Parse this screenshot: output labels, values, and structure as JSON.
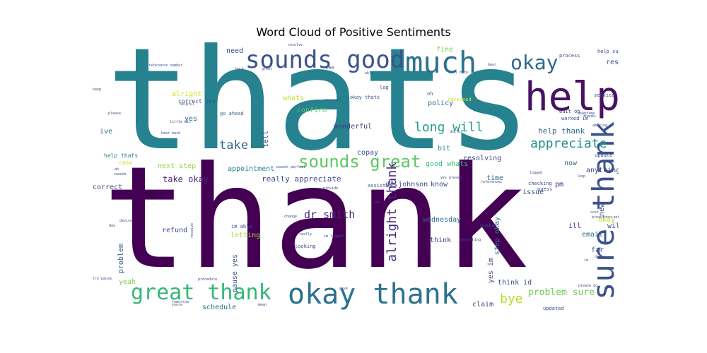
{
  "chart_data": {
    "type": "wordcloud",
    "title": "Word Cloud of Positive Sentiments",
    "palette": "viridis",
    "background": "#ffffff",
    "words": [
      {
        "text": "thats",
        "color": "#26828e"
      },
      {
        "text": "thank",
        "color": "#440154"
      },
      {
        "text": "help",
        "color": "#471164"
      },
      {
        "text": "much",
        "color": "#2c728e"
      },
      {
        "text": "sounds good",
        "color": "#3b528b"
      },
      {
        "text": "okay thank",
        "color": "#2c728e"
      },
      {
        "text": "great thank",
        "color": "#35b779"
      },
      {
        "text": "sure thank",
        "color": "#3b528b"
      },
      {
        "text": "okay",
        "color": "#31688e"
      },
      {
        "text": "sounds great",
        "color": "#5ec962"
      },
      {
        "text": "long will",
        "color": "#1f9e89"
      },
      {
        "text": "alright thank",
        "color": "#482878"
      },
      {
        "text": "appreciate",
        "color": "#21918c"
      },
      {
        "text": "bye",
        "color": "#b5de2b"
      },
      {
        "text": "take",
        "color": "#31688e"
      },
      {
        "text": "dr smith",
        "color": "#482878"
      },
      {
        "text": "problem sure",
        "color": "#6ece58"
      },
      {
        "text": "help thank",
        "color": "#31688e"
      },
      {
        "text": "really appreciate",
        "color": "#3e4a89"
      },
      {
        "text": "take okay",
        "color": "#482878"
      },
      {
        "text": "next step",
        "color": "#90d743"
      },
      {
        "text": "good whats",
        "color": "#35b779"
      },
      {
        "text": "resolving",
        "color": "#3e4a89"
      },
      {
        "text": "appointment",
        "color": "#26828e"
      },
      {
        "text": "wednesday",
        "color": "#31688e"
      },
      {
        "text": "resolved",
        "color": "#3b528b"
      },
      {
        "text": "fine",
        "color": "#7ad151"
      },
      {
        "text": "need",
        "color": "#3e4a89"
      },
      {
        "text": "whats",
        "color": "#bddf26"
      },
      {
        "text": "policy",
        "color": "#31688e"
      },
      {
        "text": "alright",
        "color": "#d2e21b"
      },
      {
        "text": "yes",
        "color": "#31688e"
      },
      {
        "text": "ive",
        "color": "#2c728e"
      },
      {
        "text": "tell",
        "color": "#3e4a89"
      },
      {
        "text": "confirm",
        "color": "#5ec962"
      },
      {
        "text": "wonderful",
        "color": "#443983"
      },
      {
        "text": "copay",
        "color": "#3b528b"
      },
      {
        "text": "bit",
        "color": "#21918c"
      },
      {
        "text": "time",
        "color": "#31688e"
      },
      {
        "text": "pm",
        "color": "#482878"
      },
      {
        "text": "dr johnson",
        "color": "#3b528b"
      },
      {
        "text": "know",
        "color": "#3e4a89"
      },
      {
        "text": "issue",
        "color": "#3b528b"
      },
      {
        "text": "now",
        "color": "#31688e"
      },
      {
        "text": "anything",
        "color": "#3e4a89"
      },
      {
        "text": "new",
        "color": "#3e4a89"
      },
      {
        "text": "okay got",
        "color": "#bddf26"
      },
      {
        "text": "will",
        "color": "#3b528b"
      },
      {
        "text": "ill",
        "color": "#482878"
      },
      {
        "text": "email",
        "color": "#31688e"
      },
      {
        "text": "far",
        "color": "#3e4a89"
      },
      {
        "text": "think",
        "color": "#3e4a89"
      },
      {
        "text": "yes im",
        "color": "#3e4a89"
      },
      {
        "text": "think id",
        "color": "#3b528b"
      },
      {
        "text": "claim",
        "color": "#3e4a89"
      },
      {
        "text": "refund",
        "color": "#3e4a89"
      },
      {
        "text": "correct",
        "color": "#3e4a89"
      },
      {
        "text": "problem",
        "color": "#3b528b"
      },
      {
        "text": "yeah",
        "color": "#7ad151"
      },
      {
        "text": "schedule",
        "color": "#2c728e"
      },
      {
        "text": "pause yes",
        "color": "#3b528b"
      },
      {
        "text": "step okay",
        "color": "#2c728e"
      },
      {
        "text": "letting",
        "color": "#a0da39"
      },
      {
        "text": "case",
        "color": "#d2e21b"
      },
      {
        "text": "help thats",
        "color": "#26828e"
      },
      {
        "text": "correct yes",
        "color": "#3b528b"
      },
      {
        "text": "go ahead",
        "color": "#31688e"
      },
      {
        "text": "okay thats",
        "color": "#3b528b"
      },
      {
        "text": "received",
        "color": "#d2e21b"
      },
      {
        "text": "oh",
        "color": "#3e4a89"
      },
      {
        "text": "process",
        "color": "#3e4a89"
      },
      {
        "text": "help sure",
        "color": "#3e4a89"
      },
      {
        "text": "worked im",
        "color": "#3e4a89"
      },
      {
        "text": "wait oh",
        "color": "#3e4a89"
      },
      {
        "text": "service",
        "color": "#3e4a89"
      },
      {
        "text": "update",
        "color": "#3e4a89"
      },
      {
        "text": "guess",
        "color": "#3e4a89"
      },
      {
        "text": "checking",
        "color": "#3e4a89"
      },
      {
        "text": "number",
        "color": "#3e4a89"
      },
      {
        "text": "updated",
        "color": "#3e4a89"
      },
      {
        "text": "im able",
        "color": "#3e4a89"
      },
      {
        "text": "assistance",
        "color": "#3e4a89"
      },
      {
        "text": "looking",
        "color": "#3e4a89"
      },
      {
        "text": "log",
        "color": "#3e4a89"
      },
      {
        "text": "see",
        "color": "#3e4a89"
      },
      {
        "text": "resolve",
        "color": "#3e4a89"
      },
      {
        "text": "reference number",
        "color": "#3e4a89"
      },
      {
        "text": "call back",
        "color": "#3e4a89"
      },
      {
        "text": "hear back",
        "color": "#3e4a89"
      },
      {
        "text": "yes please",
        "color": "#3e4a89"
      },
      {
        "text": "sounds perfect",
        "color": "#3e4a89"
      },
      {
        "text": "try pause",
        "color": "#3e4a89"
      },
      {
        "text": "everything",
        "color": "#3e4a89"
      },
      {
        "text": "back",
        "color": "#3e4a89"
      },
      {
        "text": "receive",
        "color": "#3e4a89"
      },
      {
        "text": "helpful",
        "color": "#3e4a89"
      },
      {
        "text": "please",
        "color": "#3e4a89"
      },
      {
        "text": "provide",
        "color": "#3e4a89"
      },
      {
        "text": "ah",
        "color": "#3e4a89"
      },
      {
        "text": "sounds",
        "color": "#3e4a89"
      },
      {
        "text": "give",
        "color": "#3e4a89"
      },
      {
        "text": "mean",
        "color": "#3e4a89"
      },
      {
        "text": "please go",
        "color": "#3e4a89"
      },
      {
        "text": "meantime",
        "color": "#3e4a89"
      },
      {
        "text": "thanks",
        "color": "#3e4a89"
      },
      {
        "text": "bear",
        "color": "#3e4a89"
      },
      {
        "text": "doctor",
        "color": "#3e4a89"
      },
      {
        "text": "youre",
        "color": "#3e4a89"
      },
      {
        "text": "logged",
        "color": "#3e4a89"
      },
      {
        "text": "device",
        "color": "#3e4a89"
      },
      {
        "text": "let",
        "color": "#3e4a89"
      },
      {
        "text": "able",
        "color": "#3e4a89"
      },
      {
        "text": "great",
        "color": "#3e4a89"
      },
      {
        "text": "change",
        "color": "#3e4a89"
      },
      {
        "text": "proceed",
        "color": "#3e4a89"
      },
      {
        "text": "keep",
        "color": "#3e4a89"
      },
      {
        "text": "preauthorization",
        "color": "#3e4a89"
      },
      {
        "text": "id",
        "color": "#3e4a89"
      },
      {
        "text": "loop",
        "color": "#3e4a89"
      },
      {
        "text": "little bit",
        "color": "#3e4a89"
      },
      {
        "text": "tomorrow",
        "color": "#3e4a89"
      },
      {
        "text": "im logged",
        "color": "#3e4a89"
      },
      {
        "text": "cost",
        "color": "#3e4a89"
      },
      {
        "text": "ok",
        "color": "#3e4a89"
      },
      {
        "text": "amazing",
        "color": "#3e4a89"
      },
      {
        "text": "references",
        "color": "#3e4a89"
      },
      {
        "text": "day",
        "color": "#3e4a89"
      },
      {
        "text": "procedure",
        "color": "#3e4a89"
      },
      {
        "text": "really",
        "color": "#3e4a89"
      },
      {
        "text": "next",
        "color": "#3e4a89"
      }
    ]
  }
}
